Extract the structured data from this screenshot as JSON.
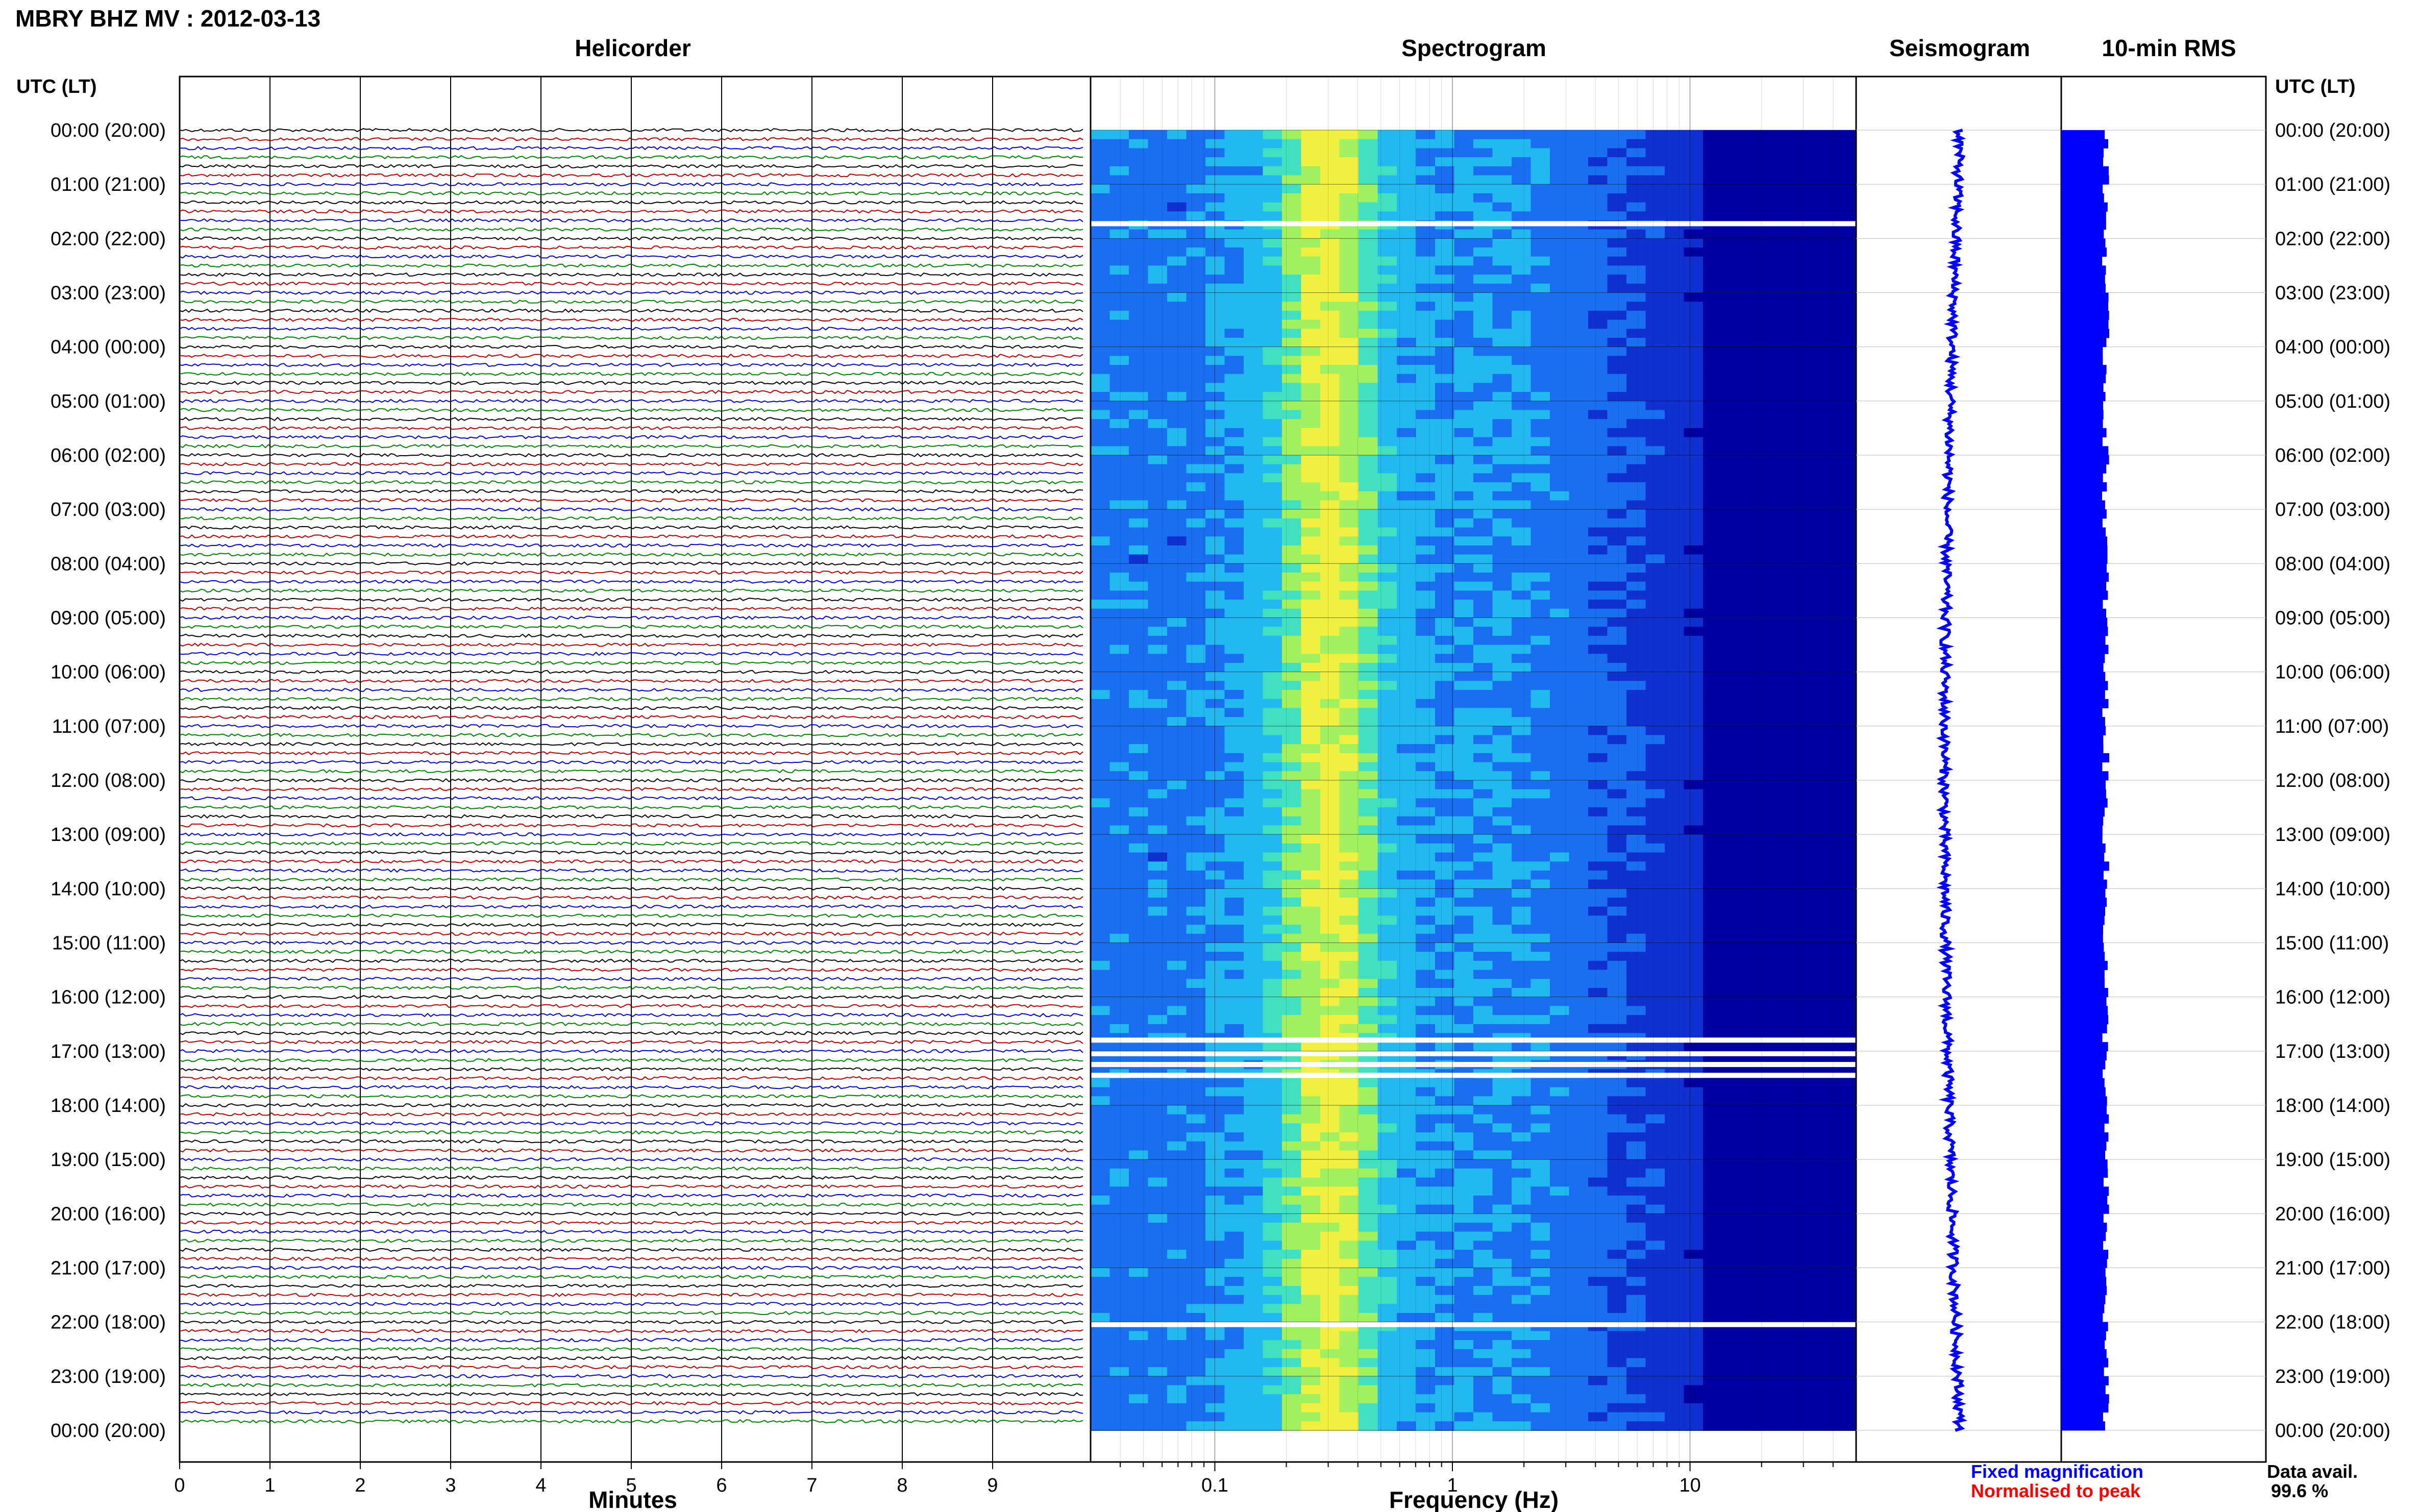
{
  "title": "MBRY BHZ MV : 2012-03-13",
  "panels": {
    "helicorder": "Helicorder",
    "spectrogram": "Spectrogram",
    "seismogram": "Seismogram",
    "rms": "10-min RMS"
  },
  "time_axis_label": "UTC (LT)",
  "time_ticks": [
    "00:00 (20:00)",
    "01:00 (21:00)",
    "02:00 (22:00)",
    "03:00 (23:00)",
    "04:00 (00:00)",
    "05:00 (01:00)",
    "06:00 (02:00)",
    "07:00 (03:00)",
    "08:00 (04:00)",
    "09:00 (05:00)",
    "10:00 (06:00)",
    "11:00 (07:00)",
    "12:00 (08:00)",
    "13:00 (09:00)",
    "14:00 (10:00)",
    "15:00 (11:00)",
    "16:00 (12:00)",
    "17:00 (13:00)",
    "18:00 (14:00)",
    "19:00 (15:00)",
    "20:00 (16:00)",
    "21:00 (17:00)",
    "22:00 (18:00)",
    "23:00 (19:00)",
    "00:00 (20:00)"
  ],
  "minutes_axis": {
    "label": "Minutes",
    "ticks": [
      "0",
      "1",
      "2",
      "3",
      "4",
      "5",
      "6",
      "7",
      "8",
      "9"
    ]
  },
  "frequency_axis": {
    "label": "Frequency (Hz)",
    "ticks": [
      "0.1",
      "1",
      "10"
    ],
    "scale": "log"
  },
  "legend": {
    "fixed": "Fixed magnification",
    "normalised": "Normalised to peak",
    "fixed_color": "#0000ff",
    "normalised_color": "#ff0000"
  },
  "data_avail": {
    "label": "Data avail.",
    "value": "99.6 %"
  },
  "colors": {
    "trace_cycle": [
      "#000000",
      "#b00000",
      "#0000c0",
      "#008000"
    ],
    "rms_fill": "#0000ff"
  },
  "chart_data": [
    {
      "type": "line",
      "title": "Helicorder",
      "xlabel": "Minutes",
      "xlim": [
        0,
        10
      ],
      "rows": 144,
      "row_minutes": 10
    },
    {
      "type": "heatmap",
      "title": "Spectrogram",
      "xlabel": "Frequency (Hz)",
      "xscale": "log",
      "xlim": [
        0.03,
        50
      ],
      "note_peak_band_hz": [
        0.2,
        0.5
      ]
    },
    {
      "type": "line",
      "title": "Seismogram"
    },
    {
      "type": "bar",
      "title": "10-min RMS",
      "orientation": "horizontal",
      "bins": 144
    }
  ]
}
